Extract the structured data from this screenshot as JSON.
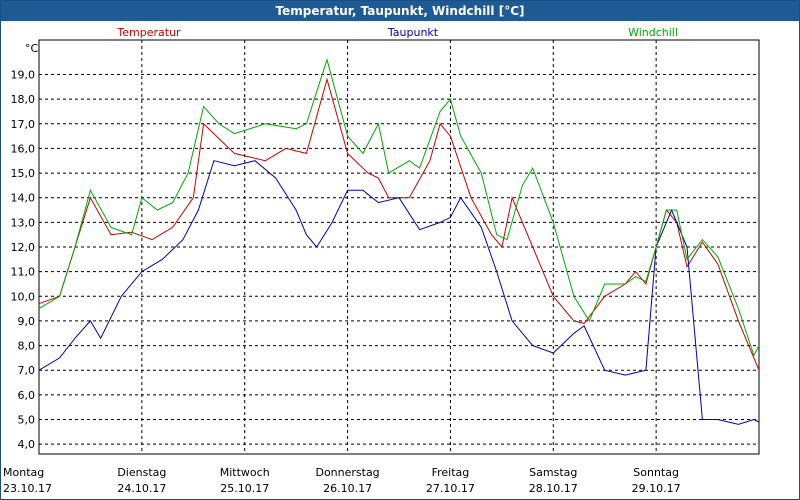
{
  "window": {
    "title": "Temperatur, Taupunkt, Windchill [°C]"
  },
  "chart_data": {
    "type": "line",
    "title": "Temperatur, Taupunkt, Windchill [°C]",
    "ylabel": "°C",
    "xlabel": "",
    "ylim": [
      3.6,
      20.4
    ],
    "xlim": [
      0,
      7
    ],
    "grid": true,
    "legend_position": "top",
    "y_ticks": [
      "4,0",
      "5,0",
      "6,0",
      "7,0",
      "8,0",
      "9,0",
      "10,0",
      "11,0",
      "12,0",
      "13,0",
      "14,0",
      "15,0",
      "16,0",
      "17,0",
      "18,0",
      "19,0"
    ],
    "x_ticks": [
      {
        "day": "Montag",
        "date": "23.10.17",
        "x": 0
      },
      {
        "day": "Dienstag",
        "date": "24.10.17",
        "x": 1
      },
      {
        "day": "Mittwoch",
        "date": "25.10.17",
        "x": 2
      },
      {
        "day": "Donnerstag",
        "date": "26.10.17",
        "x": 3
      },
      {
        "day": "Freitag",
        "date": "27.10.17",
        "x": 4
      },
      {
        "day": "Samstag",
        "date": "28.10.17",
        "x": 5
      },
      {
        "day": "Sonntag",
        "date": "29.10.17",
        "x": 6
      }
    ],
    "series": [
      {
        "name": "Temperatur",
        "color": "#cc0000",
        "points": [
          [
            0,
            9.7
          ],
          [
            0.2,
            10.0
          ],
          [
            0.35,
            12.0
          ],
          [
            0.5,
            14.0
          ],
          [
            0.7,
            12.5
          ],
          [
            0.9,
            12.6
          ],
          [
            1.1,
            12.3
          ],
          [
            1.3,
            12.8
          ],
          [
            1.5,
            14.0
          ],
          [
            1.6,
            17.0
          ],
          [
            1.75,
            16.4
          ],
          [
            1.9,
            15.8
          ],
          [
            2.2,
            15.5
          ],
          [
            2.4,
            16.0
          ],
          [
            2.6,
            15.8
          ],
          [
            2.8,
            18.8
          ],
          [
            3.0,
            15.8
          ],
          [
            3.2,
            15.0
          ],
          [
            3.3,
            14.8
          ],
          [
            3.4,
            14.0
          ],
          [
            3.6,
            14.0
          ],
          [
            3.8,
            15.5
          ],
          [
            3.9,
            17.0
          ],
          [
            4.0,
            16.5
          ],
          [
            4.2,
            14.0
          ],
          [
            4.4,
            12.5
          ],
          [
            4.5,
            12.0
          ],
          [
            4.6,
            14.0
          ],
          [
            4.8,
            12.0
          ],
          [
            5.0,
            10.0
          ],
          [
            5.2,
            9.0
          ],
          [
            5.3,
            8.9
          ],
          [
            5.5,
            10.0
          ],
          [
            5.7,
            10.5
          ],
          [
            5.8,
            11.0
          ],
          [
            5.9,
            10.5
          ],
          [
            6.0,
            12.0
          ],
          [
            6.1,
            13.5
          ],
          [
            6.2,
            13.0
          ],
          [
            6.3,
            11.2
          ],
          [
            6.45,
            12.2
          ],
          [
            6.6,
            11.3
          ],
          [
            6.8,
            9.0
          ],
          [
            7.0,
            7.0
          ]
        ]
      },
      {
        "name": "Taupunkt",
        "color": "#0000bb",
        "points": [
          [
            0,
            7.0
          ],
          [
            0.2,
            7.5
          ],
          [
            0.35,
            8.3
          ],
          [
            0.5,
            9.0
          ],
          [
            0.6,
            8.3
          ],
          [
            0.8,
            10.0
          ],
          [
            1.0,
            11.0
          ],
          [
            1.2,
            11.5
          ],
          [
            1.4,
            12.3
          ],
          [
            1.55,
            13.5
          ],
          [
            1.7,
            15.5
          ],
          [
            1.9,
            15.3
          ],
          [
            2.1,
            15.5
          ],
          [
            2.3,
            14.8
          ],
          [
            2.5,
            13.5
          ],
          [
            2.6,
            12.5
          ],
          [
            2.7,
            12.0
          ],
          [
            2.85,
            13.0
          ],
          [
            3.0,
            14.3
          ],
          [
            3.15,
            14.3
          ],
          [
            3.3,
            13.8
          ],
          [
            3.5,
            14.0
          ],
          [
            3.7,
            12.7
          ],
          [
            3.9,
            13.0
          ],
          [
            4.0,
            13.2
          ],
          [
            4.1,
            14.0
          ],
          [
            4.3,
            12.8
          ],
          [
            4.45,
            11.0
          ],
          [
            4.6,
            9.0
          ],
          [
            4.8,
            8.0
          ],
          [
            5.0,
            7.7
          ],
          [
            5.2,
            8.5
          ],
          [
            5.3,
            8.8
          ],
          [
            5.5,
            7.0
          ],
          [
            5.7,
            6.8
          ],
          [
            5.9,
            7.0
          ],
          [
            6.0,
            12.0
          ],
          [
            6.15,
            13.5
          ],
          [
            6.3,
            12.0
          ],
          [
            6.45,
            5.0
          ],
          [
            6.6,
            5.0
          ],
          [
            6.8,
            4.8
          ],
          [
            6.95,
            5.0
          ],
          [
            7.0,
            4.9
          ]
        ]
      },
      {
        "name": "Windchill",
        "color": "#00aa00",
        "points": [
          [
            0,
            9.5
          ],
          [
            0.2,
            10.0
          ],
          [
            0.35,
            12.0
          ],
          [
            0.5,
            14.3
          ],
          [
            0.7,
            12.8
          ],
          [
            0.9,
            12.5
          ],
          [
            1.0,
            14.0
          ],
          [
            1.15,
            13.5
          ],
          [
            1.3,
            13.8
          ],
          [
            1.45,
            15.0
          ],
          [
            1.6,
            17.7
          ],
          [
            1.75,
            17.0
          ],
          [
            1.9,
            16.6
          ],
          [
            2.2,
            17.0
          ],
          [
            2.5,
            16.8
          ],
          [
            2.6,
            17.0
          ],
          [
            2.8,
            19.6
          ],
          [
            3.0,
            16.5
          ],
          [
            3.15,
            15.8
          ],
          [
            3.3,
            17.0
          ],
          [
            3.4,
            15.0
          ],
          [
            3.6,
            15.5
          ],
          [
            3.7,
            15.2
          ],
          [
            3.9,
            17.5
          ],
          [
            4.0,
            18.0
          ],
          [
            4.1,
            16.5
          ],
          [
            4.3,
            15.0
          ],
          [
            4.45,
            12.5
          ],
          [
            4.55,
            12.3
          ],
          [
            4.7,
            14.5
          ],
          [
            4.8,
            15.2
          ],
          [
            5.0,
            13.0
          ],
          [
            5.2,
            10.0
          ],
          [
            5.35,
            9.0
          ],
          [
            5.5,
            10.5
          ],
          [
            5.7,
            10.5
          ],
          [
            5.8,
            10.8
          ],
          [
            5.9,
            10.6
          ],
          [
            6.0,
            12.0
          ],
          [
            6.1,
            13.5
          ],
          [
            6.2,
            13.5
          ],
          [
            6.3,
            11.5
          ],
          [
            6.45,
            12.3
          ],
          [
            6.6,
            11.6
          ],
          [
            6.8,
            9.5
          ],
          [
            6.95,
            7.6
          ],
          [
            7.0,
            8.0
          ]
        ]
      }
    ]
  }
}
